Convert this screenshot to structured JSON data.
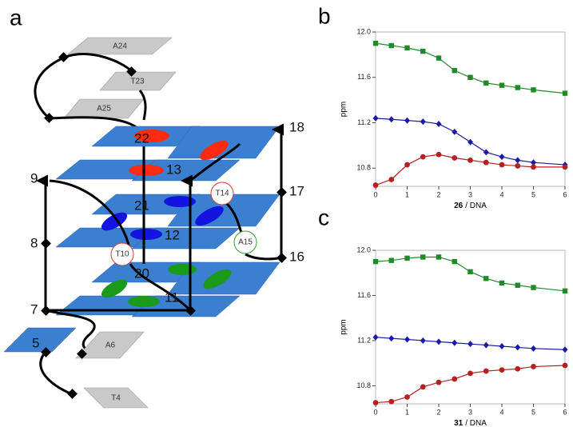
{
  "diagram": {
    "panel": "a",
    "grey_labels": [
      "A24",
      "T23",
      "A25",
      "A6",
      "T4"
    ],
    "circle_labels": [
      "T14",
      "A15",
      "T10"
    ],
    "number_labels": [
      "9",
      "8",
      "7",
      "18",
      "17",
      "16",
      "22",
      "13",
      "21",
      "12",
      "20",
      "11",
      "5"
    ]
  },
  "chart_data": [
    {
      "type": "line",
      "panel": "b",
      "ylabel": "ppm",
      "xlabel_bold": "26",
      "xlabel": "/ DNA",
      "x": [
        0,
        0.5,
        1,
        1.5,
        2,
        2.5,
        3,
        3.5,
        4,
        4.5,
        5,
        6
      ],
      "xlim": [
        0,
        6
      ],
      "xticks": [
        0,
        1,
        2,
        3,
        4,
        5,
        6
      ],
      "ylim": [
        10.64,
        12.0
      ],
      "yticks": [
        10.8,
        11.2,
        11.6,
        {
          "value": 12,
          "label": "12.0"
        }
      ],
      "series": [
        {
          "color": "#1f8a2a",
          "marker": "square",
          "values": [
            11.9,
            11.88,
            11.86,
            11.83,
            11.77,
            11.66,
            11.6,
            11.55,
            11.53,
            11.51,
            11.49,
            11.46
          ]
        },
        {
          "color": "#1a1aa8",
          "marker": "diamond",
          "values": [
            11.24,
            11.23,
            11.22,
            11.21,
            11.19,
            11.12,
            11.03,
            10.94,
            10.9,
            10.87,
            10.85,
            10.83
          ]
        },
        {
          "color": "#b82020",
          "marker": "circle",
          "values": [
            10.65,
            10.7,
            10.83,
            10.9,
            10.92,
            10.89,
            10.87,
            10.85,
            10.83,
            10.82,
            10.81,
            10.81
          ]
        }
      ]
    },
    {
      "type": "line",
      "panel": "c",
      "ylabel": "ppm",
      "xlabel_bold": "31",
      "xlabel": "/ DNA",
      "x": [
        0,
        0.5,
        1,
        1.5,
        2,
        2.5,
        3,
        3.5,
        4,
        4.5,
        5,
        6
      ],
      "xlim": [
        0,
        6
      ],
      "xticks": [
        0,
        1,
        2,
        3,
        4,
        5,
        6
      ],
      "ylim": [
        10.64,
        12.0
      ],
      "yticks": [
        10.8,
        11.2,
        11.6,
        {
          "value": 12,
          "label": "12.0"
        }
      ],
      "series": [
        {
          "color": "#1f8a2a",
          "marker": "square",
          "values": [
            11.9,
            11.91,
            11.93,
            11.94,
            11.94,
            11.9,
            11.81,
            11.75,
            11.71,
            11.69,
            11.67,
            11.64
          ]
        },
        {
          "color": "#1a1aa8",
          "marker": "diamond",
          "values": [
            11.23,
            11.22,
            11.21,
            11.2,
            11.19,
            11.18,
            11.17,
            11.16,
            11.15,
            11.14,
            11.13,
            11.12
          ]
        },
        {
          "color": "#b82020",
          "marker": "circle",
          "values": [
            10.65,
            10.66,
            10.7,
            10.79,
            10.83,
            10.86,
            10.91,
            10.93,
            10.94,
            10.95,
            10.97,
            10.98
          ]
        }
      ]
    }
  ]
}
